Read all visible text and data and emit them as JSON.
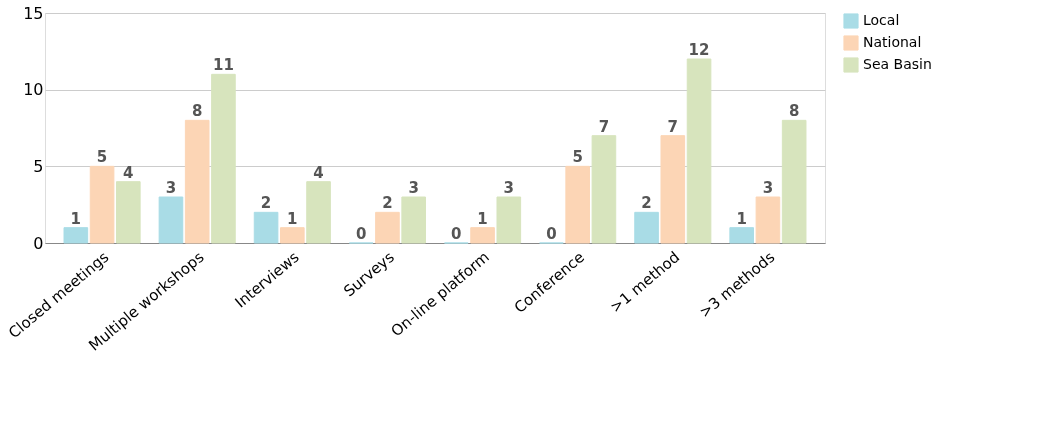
{
  "chart_data": {
    "type": "bar",
    "categories": [
      "Closed meetings",
      "Multiple workshops",
      "Interviews",
      "Surveys",
      "On-line platform",
      "Conference",
      ">1  method",
      ">3  methods"
    ],
    "series": [
      {
        "name": "Local",
        "color": "#a9dce6",
        "values": [
          1,
          3,
          2,
          0,
          0,
          0,
          2,
          1
        ]
      },
      {
        "name": "National",
        "color": "#fcd5b5",
        "values": [
          5,
          8,
          1,
          2,
          1,
          5,
          7,
          3
        ]
      },
      {
        "name": "Sea Basin",
        "color": "#d7e4bd",
        "values": [
          4,
          11,
          4,
          3,
          3,
          7,
          12,
          8
        ]
      }
    ],
    "ylim": [
      0,
      15
    ],
    "yticks": [
      0,
      5,
      10,
      15
    ],
    "grid": "y",
    "legend": "right",
    "data_labels": true
  }
}
